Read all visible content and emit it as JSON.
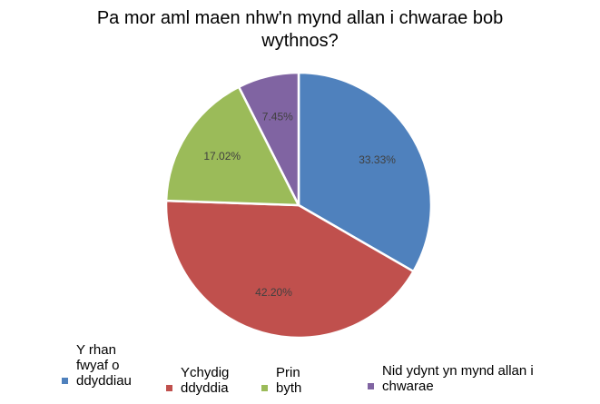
{
  "chart_data": {
    "type": "pie",
    "title": "Pa mor aml maen nhw'n mynd allan i chwarae bob wythnos?",
    "categories": [
      "Y rhan fwyaf o ddyddiau",
      "Ychydig ddyddia",
      "Prin byth",
      "Nid ydynt yn mynd allan i chwarae"
    ],
    "values": [
      33.33,
      42.2,
      17.02,
      7.45
    ],
    "labels": [
      "33.33%",
      "42.20%",
      "17.02%",
      "7.45%"
    ],
    "colors": [
      "#4f81bd",
      "#c0504d",
      "#9bbb59",
      "#8064a2"
    ],
    "legend_position": "bottom"
  }
}
